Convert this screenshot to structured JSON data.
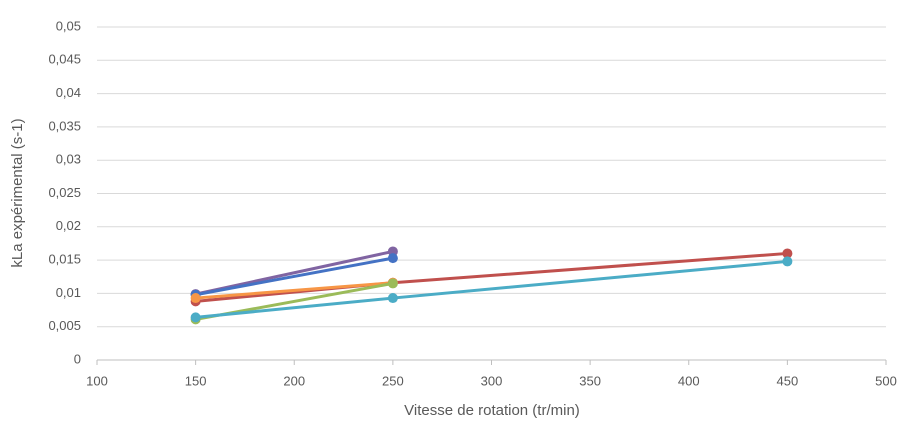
{
  "chart_data": {
    "type": "line",
    "xlabel": "Vitesse de rotation (tr/min)",
    "ylabel": "kLa expérimental (s-1)",
    "x": [
      150,
      250,
      450
    ],
    "series": [
      {
        "color": "#8064a2",
        "values": [
          0.0099,
          0.0163,
          null
        ]
      },
      {
        "color": "#4472c4",
        "values": [
          0.0098,
          0.0153,
          null
        ]
      },
      {
        "color": "#c0504d",
        "values": [
          0.0088,
          0.0116,
          0.016
        ]
      },
      {
        "color": "#f79646",
        "values": [
          0.0093,
          0.0116,
          null
        ]
      },
      {
        "color": "#9bbb59",
        "values": [
          0.0061,
          0.0115,
          null
        ]
      },
      {
        "color": "#4bacc6",
        "values": [
          0.0064,
          0.0093,
          0.0148
        ]
      }
    ],
    "xlim": [
      100,
      500
    ],
    "xticks": [
      100,
      150,
      200,
      250,
      300,
      350,
      400,
      450,
      500
    ],
    "ylim": [
      0,
      0.05
    ],
    "yticks": [
      0,
      {
        "value": 0.005,
        "label": "0,005"
      },
      {
        "value": 0.01,
        "label": "0,01"
      },
      {
        "value": 0.015,
        "label": "0,015"
      },
      {
        "value": 0.02,
        "label": "0,02"
      },
      {
        "value": 0.025,
        "label": "0,025"
      },
      {
        "value": 0.03,
        "label": "0,03"
      },
      {
        "value": 0.035,
        "label": "0,035"
      },
      {
        "value": 0.04,
        "label": "0,04"
      },
      {
        "value": 0.045,
        "label": "0,045"
      },
      {
        "value": 0.05,
        "label": "0,05"
      }
    ],
    "grid": true
  }
}
